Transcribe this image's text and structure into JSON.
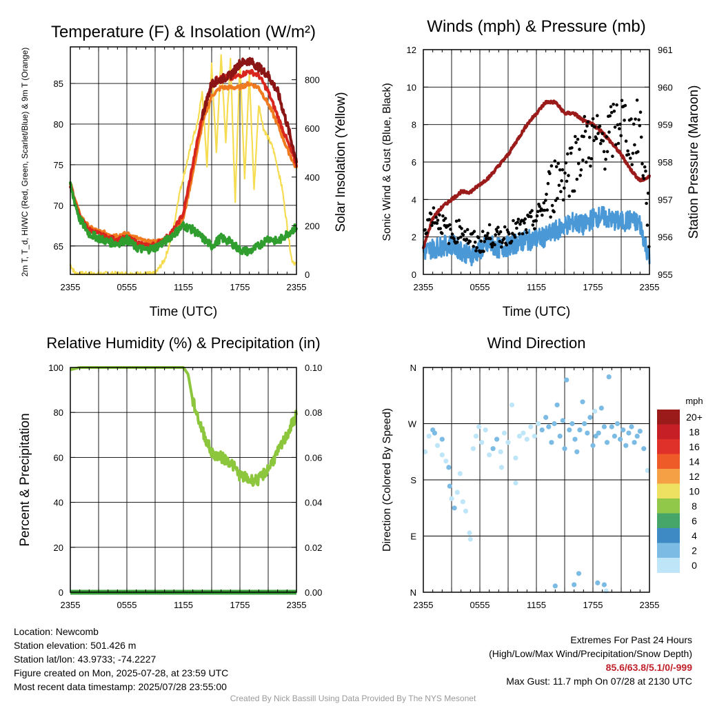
{
  "colors": {
    "t2m": "#d8261e",
    "td": "#2f9e2f",
    "hi": "#8b1414",
    "t9m": "#f07a20",
    "solar": "#f5dc50",
    "rh": "#8cc63c",
    "precip": "#3aa03a",
    "wind": "#4a98d6",
    "gust": "#000000",
    "pressure": "#9b1b1b"
  },
  "panels": {
    "temp": {
      "title": "Temperature (F) & Insolation (W/m²)",
      "ylabel_left": "2m T, T_d, HI/WC (Red, Green, Scarlet/Blue) & 9m T (Orange)",
      "ylabel_right": "Solar Insolation (Yellow)",
      "xlabel": "Time (UTC)"
    },
    "wind": {
      "title": "Winds (mph) & Pressure (mb)",
      "ylabel_left": "Sonic Wind & Gust (Blue, Black)",
      "ylabel_right": "Station Pressure (Maroon)",
      "xlabel": "Time (UTC)"
    },
    "rh": {
      "title": "Relative Humidity (%) & Precipitation (in)",
      "ylabel_left": "Percent & Precipitation",
      "xlabel": ""
    },
    "dir": {
      "title": "Wind Direction",
      "ylabel_left": "Direction (Colored By Speed)",
      "xlabel": ""
    }
  },
  "colorbar": {
    "unit": "mph",
    "labels": [
      "20+",
      "18",
      "16",
      "14",
      "12",
      "10",
      "8",
      "6",
      "4",
      "2",
      "0"
    ],
    "colors": [
      "#9b1b1b",
      "#c62026",
      "#e0302a",
      "#ee5a28",
      "#f6a046",
      "#eee060",
      "#92c84a",
      "#46a66a",
      "#3d8ac4",
      "#7cbbe4",
      "#bfe6f8"
    ]
  },
  "info": {
    "location": "Location: Newcomb",
    "elevation": "Station elevation: 501.426 m",
    "latlon": "Station lat/lon: 43.9733; -74.2227",
    "created": "Figure created on Mon, 2025-07-28, at 23:59 UTC",
    "recent": "Most recent data timestamp: 2025/07/28 23:55:00"
  },
  "extremes": {
    "heading": "Extremes For Past 24 Hours",
    "subheading": "(High/Low/Max Wind/Precipitation/Snow Depth)",
    "values": "85.6/63.8/5.1/0/-999",
    "max_gust": "Max Gust: 11.7 mph On 07/28 at 2130 UTC"
  },
  "credit": "Created By Nick Bassill Using Data Provided By The NYS Mesonet",
  "chart_data": [
    {
      "id": "temp",
      "type": "line",
      "title": "Temperature (F) & Insolation (W/m²)",
      "xlabel": "Time (UTC)",
      "x_ticks": [
        "2355",
        "0555",
        "1155",
        "1755",
        "2355"
      ],
      "x_range_hours": [
        0,
        24
      ],
      "ylim": [
        61.5,
        89.5
      ],
      "y_ticks": [
        65,
        70,
        75,
        80,
        85
      ],
      "y2lim": [
        0,
        935
      ],
      "y2_ticks": [
        0,
        200,
        400,
        600,
        800
      ],
      "series": [
        {
          "key": "t2m",
          "axis": "left",
          "x": [
            0,
            1,
            2,
            3,
            4,
            5,
            6,
            7,
            8,
            9,
            10,
            11,
            12,
            13,
            14,
            15,
            16,
            17,
            18,
            19,
            20,
            21,
            22,
            23,
            24
          ],
          "values": [
            72.5,
            68.5,
            67,
            66.5,
            66,
            65.8,
            66,
            65.5,
            65,
            65.2,
            65.8,
            67,
            69,
            75,
            81,
            85,
            86,
            85.6,
            86,
            86.5,
            86,
            84,
            81,
            78,
            75
          ]
        },
        {
          "key": "td",
          "axis": "left",
          "x": [
            0,
            1,
            2,
            3,
            4,
            5,
            6,
            7,
            8,
            9,
            10,
            11,
            12,
            13,
            14,
            15,
            16,
            17,
            18,
            19,
            20,
            21,
            22,
            23,
            24
          ],
          "values": [
            72.3,
            68.3,
            66.5,
            66,
            65.5,
            65.3,
            65.8,
            64.8,
            64.5,
            64.8,
            65.5,
            66.5,
            67.5,
            67,
            66,
            65,
            66,
            65.5,
            64.5,
            64.3,
            65,
            66,
            65.5,
            66.5,
            67.3
          ]
        },
        {
          "key": "hi",
          "axis": "left",
          "x": [
            14,
            15,
            16,
            17,
            18,
            19,
            20,
            21,
            22,
            23,
            24
          ],
          "values": [
            81,
            85,
            85.5,
            86,
            87.5,
            87.8,
            87,
            86,
            84,
            80,
            75.5
          ]
        },
        {
          "key": "t9m",
          "axis": "left",
          "x": [
            0,
            1,
            2,
            3,
            4,
            5,
            6,
            7,
            8,
            9,
            10,
            11,
            12,
            13,
            14,
            15,
            16,
            17,
            18,
            19,
            20,
            21,
            22,
            23,
            24
          ],
          "values": [
            72.7,
            68.8,
            67.3,
            66.8,
            66.5,
            66.3,
            66.5,
            66,
            65.5,
            65.5,
            65.8,
            66.8,
            68.5,
            74,
            80,
            83.5,
            84.5,
            84.5,
            84.5,
            85,
            84.5,
            82.5,
            80,
            77,
            74.5
          ]
        },
        {
          "key": "solar",
          "axis": "right",
          "x": [
            0,
            0.5,
            1,
            2,
            3,
            4,
            5,
            6,
            7,
            8,
            9,
            10,
            10.5,
            11,
            11.5,
            12,
            12.5,
            13,
            13.5,
            14,
            14.5,
            15,
            15.5,
            16,
            16.5,
            17,
            17.5,
            18,
            18.5,
            19,
            19.5,
            20,
            20.5,
            21,
            21.5,
            22,
            22.5,
            23,
            23.5,
            24
          ],
          "values": [
            40,
            5,
            2,
            2,
            2,
            2,
            2,
            2,
            2,
            2,
            2,
            60,
            120,
            200,
            320,
            400,
            480,
            560,
            620,
            750,
            450,
            860,
            500,
            900,
            550,
            880,
            300,
            880,
            400,
            820,
            350,
            700,
            600,
            560,
            520,
            440,
            350,
            200,
            60,
            40
          ]
        }
      ]
    },
    {
      "id": "wind",
      "type": "line",
      "title": "Winds (mph) & Pressure (mb)",
      "xlabel": "Time (UTC)",
      "ylabel": "Sonic Wind & Gust (Blue, Black)",
      "y2label": "Station Pressure (Maroon)",
      "x_ticks": [
        "2355",
        "0555",
        "1155",
        "1755",
        "2355"
      ],
      "ylim": [
        0,
        12
      ],
      "y_ticks": [
        0,
        2,
        4,
        6,
        8,
        10,
        12
      ],
      "y2lim": [
        955,
        961
      ],
      "y2_ticks": [
        955,
        956,
        957,
        958,
        959,
        960,
        961
      ],
      "series": [
        {
          "key": "wind",
          "name": "Sonic Wind",
          "axis": "left",
          "x": [
            0,
            1,
            2,
            3,
            4,
            5,
            6,
            7,
            8,
            9,
            10,
            11,
            12,
            13,
            14,
            15,
            16,
            17,
            18,
            19,
            20,
            21,
            22,
            23,
            24
          ],
          "values": [
            1.2,
            1.4,
            1.5,
            1.6,
            1.3,
            1.0,
            1.3,
            1.6,
            1.4,
            1.5,
            1.7,
            1.8,
            1.9,
            2.0,
            2.3,
            2.6,
            2.8,
            2.6,
            3.0,
            3.1,
            2.9,
            2.8,
            2.9,
            2.7,
            0.8
          ]
        },
        {
          "key": "gust",
          "name": "Gust",
          "axis": "left",
          "x": [
            0,
            1,
            2,
            3,
            4,
            5,
            6,
            7,
            8,
            9,
            10,
            11,
            12,
            13,
            14,
            15,
            16,
            17,
            18,
            19,
            20,
            21,
            22,
            23,
            24
          ],
          "values": [
            2.5,
            3.2,
            2.7,
            2.0,
            2.5,
            1.8,
            1.6,
            2.1,
            1.9,
            2.2,
            2.4,
            2.6,
            3.0,
            3.8,
            5.0,
            5.4,
            6.0,
            7.0,
            7.2,
            7.0,
            7.5,
            8.4,
            7.2,
            8.0,
            2.4
          ]
        },
        {
          "key": "pressure",
          "name": "Station Pressure",
          "axis": "right",
          "x": [
            0,
            1,
            2,
            3,
            4,
            5,
            6,
            7,
            8,
            9,
            10,
            11,
            12,
            13,
            14,
            15,
            16,
            17,
            18,
            19,
            20,
            21,
            22,
            23,
            24
          ],
          "values": [
            955.7,
            956.5,
            956.8,
            957.0,
            957.2,
            957.2,
            957.4,
            957.6,
            957.9,
            958.2,
            958.6,
            959.0,
            959.3,
            959.6,
            959.6,
            959.3,
            959.3,
            959.1,
            959.0,
            958.8,
            958.5,
            958.2,
            957.8,
            957.5,
            957.6
          ]
        }
      ]
    },
    {
      "id": "rh",
      "type": "line",
      "title": "Relative Humidity (%) & Precipitation (in)",
      "ylabel": "Percent & Precipitation",
      "x_ticks": [
        "2355",
        "0555",
        "1155",
        "1755",
        "2355"
      ],
      "ylim": [
        0,
        100
      ],
      "y_ticks": [
        0,
        20,
        40,
        60,
        80,
        100
      ],
      "y2lim": [
        0,
        0.1
      ],
      "y2_ticks": [
        "0.00",
        "0.02",
        "0.04",
        "0.06",
        "0.08",
        "0.10"
      ],
      "series": [
        {
          "key": "rh",
          "name": "Relative Humidity",
          "axis": "left",
          "x": [
            0,
            1,
            2,
            3,
            4,
            5,
            6,
            7,
            8,
            9,
            10,
            11,
            12,
            12.5,
            13,
            14,
            15,
            16,
            17,
            18,
            19,
            20,
            21,
            22,
            23,
            24
          ],
          "values": [
            99,
            100,
            100,
            100,
            100,
            100,
            100,
            100,
            100,
            100,
            100,
            100,
            100,
            97,
            85,
            72,
            62,
            60,
            58,
            52,
            50,
            50,
            55,
            62,
            70,
            79
          ]
        },
        {
          "key": "precip",
          "name": "Precipitation",
          "axis": "right",
          "x": [
            0,
            24
          ],
          "values": [
            0,
            0
          ]
        }
      ]
    },
    {
      "id": "dir",
      "type": "scatter",
      "title": "Wind Direction",
      "ylabel": "Direction (Colored By Speed)",
      "x_ticks": [
        "2355",
        "0555",
        "1155",
        "1755",
        "2355"
      ],
      "y_ticks": [
        "N",
        "E",
        "S",
        "W",
        "N"
      ],
      "ylim_deg": [
        0,
        360
      ],
      "points": [
        [
          0.2,
          225,
          1
        ],
        [
          0.6,
          250,
          1
        ],
        [
          1.0,
          260,
          2
        ],
        [
          1.2,
          255,
          2
        ],
        [
          1.5,
          235,
          1
        ],
        [
          2.0,
          220,
          0
        ],
        [
          2.4,
          210,
          1
        ],
        [
          2.8,
          170,
          2
        ],
        [
          3.0,
          150,
          1
        ],
        [
          3.3,
          135,
          3
        ],
        [
          3.6,
          160,
          1
        ],
        [
          3.9,
          190,
          0
        ],
        [
          4.2,
          145,
          1
        ],
        [
          4.5,
          130,
          0
        ],
        [
          4.9,
          95,
          0
        ],
        [
          5.3,
          230,
          1
        ],
        [
          5.6,
          250,
          1
        ],
        [
          5.9,
          265,
          0
        ],
        [
          6.2,
          240,
          1
        ],
        [
          6.6,
          260,
          0
        ],
        [
          7.0,
          220,
          1
        ],
        [
          7.4,
          230,
          2
        ],
        [
          7.8,
          245,
          2
        ],
        [
          8.2,
          225,
          1
        ],
        [
          8.6,
          255,
          0
        ],
        [
          9.0,
          240,
          0
        ],
        [
          9.4,
          300,
          1
        ],
        [
          9.8,
          215,
          1
        ],
        [
          10.2,
          250,
          1
        ],
        [
          10.6,
          255,
          0
        ],
        [
          11.0,
          245,
          0
        ],
        [
          11.4,
          265,
          1
        ],
        [
          11.8,
          250,
          0
        ],
        [
          12.2,
          270,
          1
        ],
        [
          12.6,
          260,
          2
        ],
        [
          13.0,
          280,
          2
        ],
        [
          13.3,
          265,
          2
        ],
        [
          13.6,
          240,
          3
        ],
        [
          13.9,
          270,
          3
        ],
        [
          14.2,
          300,
          2
        ],
        [
          14.5,
          250,
          2
        ],
        [
          14.8,
          275,
          3
        ],
        [
          15.0,
          230,
          3
        ],
        [
          15.2,
          340,
          3
        ],
        [
          15.5,
          260,
          2
        ],
        [
          15.8,
          270,
          2
        ],
        [
          16.1,
          245,
          3
        ],
        [
          16.3,
          225,
          3
        ],
        [
          16.6,
          260,
          2
        ],
        [
          16.9,
          305,
          3
        ],
        [
          17.1,
          270,
          2
        ],
        [
          17.4,
          255,
          2
        ],
        [
          17.7,
          280,
          3
        ],
        [
          18.0,
          235,
          3
        ],
        [
          18.3,
          250,
          2
        ],
        [
          18.6,
          255,
          3
        ],
        [
          18.9,
          295,
          2
        ],
        [
          19.2,
          265,
          3
        ],
        [
          19.5,
          240,
          3
        ],
        [
          19.7,
          345,
          3
        ],
        [
          20.0,
          265,
          3
        ],
        [
          20.3,
          250,
          3
        ],
        [
          20.6,
          270,
          3
        ],
        [
          20.9,
          245,
          3
        ],
        [
          21.2,
          260,
          3
        ],
        [
          21.5,
          235,
          3
        ],
        [
          21.8,
          255,
          3
        ],
        [
          22.1,
          265,
          3
        ],
        [
          22.4,
          240,
          3
        ],
        [
          22.7,
          250,
          2
        ],
        [
          23.0,
          258,
          3
        ],
        [
          23.4,
          230,
          2
        ],
        [
          23.8,
          195,
          1
        ],
        [
          14.0,
          10,
          3
        ],
        [
          16.0,
          12,
          3
        ],
        [
          16.5,
          30,
          2
        ],
        [
          18.5,
          15,
          2
        ],
        [
          19.2,
          12,
          3
        ],
        [
          19.4,
          2,
          1
        ],
        [
          9.8,
          175,
          1
        ],
        [
          2.0,
          245,
          3
        ],
        [
          8.3,
          200,
          0
        ],
        [
          5.0,
          85,
          1
        ],
        [
          2.7,
          200,
          2
        ],
        [
          18.2,
          290,
          0
        ]
      ]
    }
  ]
}
